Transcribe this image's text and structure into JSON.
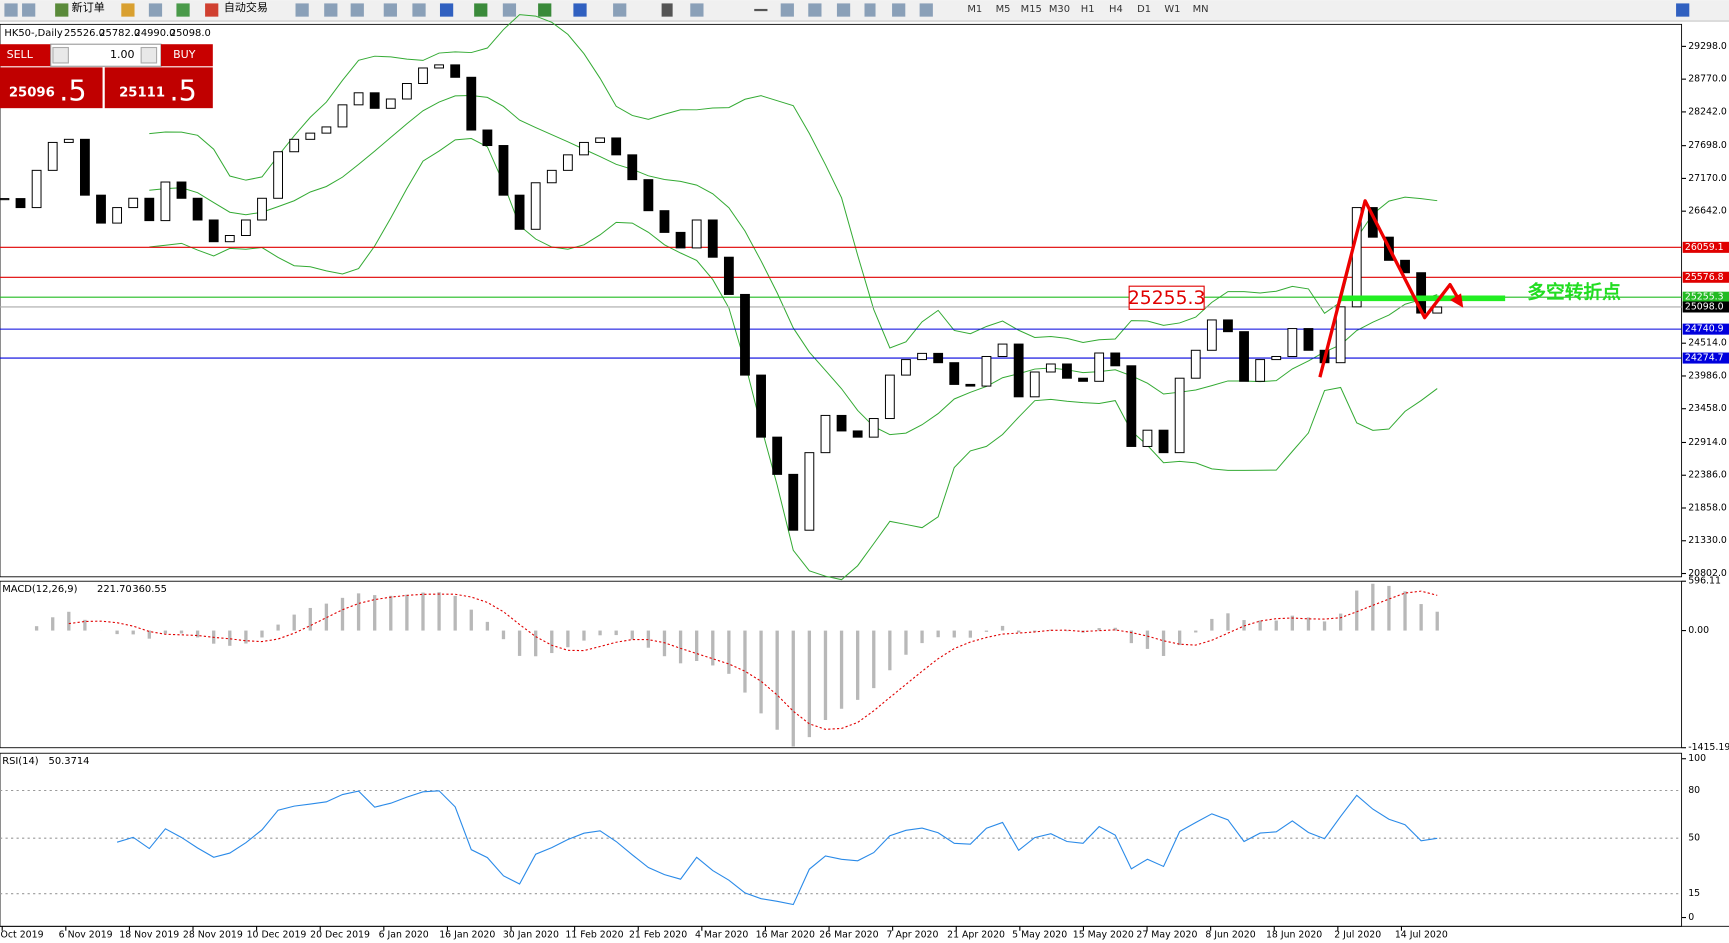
{
  "toolbar": {
    "new_order": "新订单",
    "auto_trading": "自动交易",
    "timeframes": [
      "M1",
      "M5",
      "M15",
      "M30",
      "H1",
      "H4",
      "D1",
      "W1",
      "MN"
    ]
  },
  "trade_panel": {
    "sell": "SELL",
    "buy": "BUY",
    "lots": {
      "value": 1,
      "label": "1.00"
    },
    "bid": {
      "value": 25096.5,
      "label": "25096.5"
    },
    "ask": {
      "value": 25111.5,
      "label": "25111.5"
    }
  },
  "chart_data": {
    "type": "candlestick",
    "title": "HK50-,Daily",
    "ohlc": [
      {
        "value": 25526,
        "label": "25526.0"
      },
      {
        "value": 25782,
        "label": "25782.0"
      },
      {
        "value": 24990,
        "label": "24990.0"
      },
      {
        "value": 25098,
        "label": "25098.0"
      }
    ],
    "closes": [
      26845,
      26700,
      27300,
      27750,
      27800,
      26900,
      26450,
      26700,
      26850,
      26490,
      27112,
      26850,
      26500,
      26150,
      26250,
      26500,
      26850,
      27600,
      27800,
      27900,
      28000,
      28356,
      28550,
      28300,
      28450,
      28700,
      28950,
      29000,
      28800,
      27950,
      27700,
      26900,
      26350,
      27100,
      27300,
      27550,
      27750,
      27822,
      27550,
      27150,
      26650,
      26300,
      26050,
      26500,
      25900,
      25300,
      24000,
      23000,
      22400,
      21500,
      22750,
      23350,
      23100,
      23000,
      23300,
      24000,
      24250,
      24350,
      24200,
      23850,
      23823,
      24300,
      24500,
      23650,
      24050,
      24179,
      23950,
      23900,
      24356,
      24150,
      22850,
      23112,
      22750,
      23950,
      24400,
      24889,
      24700,
      23900,
      24250,
      24300,
      24750,
      24400,
      24200,
      25100,
      26700,
      26223,
      25850,
      25650,
      25000,
      25098
    ],
    "ylim": [
      20749,
      29653
    ],
    "yticks": [
      {
        "value": 29298,
        "label": "29298.0"
      },
      {
        "value": 28770,
        "label": "28770.0"
      },
      {
        "value": 28242,
        "label": "28242.0"
      },
      {
        "value": 27698,
        "label": "27698.0"
      },
      {
        "value": 27170,
        "label": "27170.0"
      },
      {
        "value": 26642,
        "label": "26642.0"
      },
      {
        "value": 24514,
        "label": "24514.0"
      },
      {
        "value": 23986,
        "label": "23986.0"
      },
      {
        "value": 23458,
        "label": "23458.0"
      },
      {
        "value": 22914,
        "label": "22914.0"
      },
      {
        "value": 22386,
        "label": "22386.0"
      },
      {
        "value": 21858,
        "label": "21858.0"
      },
      {
        "value": 21330,
        "label": "21330.0"
      },
      {
        "value": 20802,
        "label": "20802.0"
      }
    ],
    "levels": [
      {
        "price": 26059.1,
        "color": "#e00000"
      },
      {
        "price": 25576.8,
        "color": "#e00000"
      },
      {
        "price": 25255.3,
        "color": "#22bb22"
      },
      {
        "price": {
          "value": 25098,
          "label": "25098.0"
        },
        "color": "#000000"
      },
      {
        "price": 24740.9,
        "color": "#0000dd"
      },
      {
        "price": 24274.7,
        "color": "#0000dd"
      }
    ],
    "annotation_price": 25255.3,
    "annotation_text": "多空转折点",
    "x_labels": [
      "Oct 2019",
      "6 Nov 2019",
      "18 Nov 2019",
      "28 Nov 2019",
      "10 Dec 2019",
      "20 Dec 2019",
      "6 Jan 2020",
      "16 Jan 2020",
      "30 Jan 2020",
      "11 Feb 2020",
      "21 Feb 2020",
      "4 Mar 2020",
      "16 Mar 2020",
      "26 Mar 2020",
      "7 Apr 2020",
      "21 Apr 2020",
      "5 May 2020",
      "15 May 2020",
      "27 May 2020",
      "8 Jun 2020",
      "18 Jun 2020",
      "2 Jul 2020",
      "14 Jul 2020"
    ],
    "macd": {
      "label": "MACD(12,26,9)",
      "values": [
        {
          "value": 221.7,
          "label": "221.70"
        },
        360.55
      ],
      "ylim": [
        -1415.19,
        596.11
      ],
      "yticks": [
        596.11,
        {
          "value": 0,
          "label": "0.00"
        },
        -1415.19
      ]
    },
    "rsi": {
      "label": "RSI(14)",
      "value": 50.3714,
      "ylim": [
        0,
        100
      ],
      "yticks": [
        100,
        80,
        50,
        15,
        0
      ]
    }
  }
}
